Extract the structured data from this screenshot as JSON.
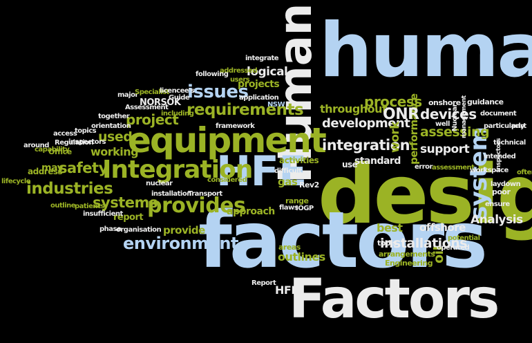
{
  "words": [
    "human",
    "Human",
    "design",
    "factors",
    "Factors",
    "HFE",
    "equipment",
    "Integration",
    "system",
    "provides",
    "environment",
    "requirements",
    "issues",
    "integration",
    "development",
    "systems",
    "industries",
    "safety",
    "project",
    "used",
    "working",
    "logical",
    "projects",
    "addressed",
    "integrate",
    "following",
    "users",
    "performance",
    "process",
    "assessing",
    "support",
    "devices",
    "throughout",
    "ONR",
    "work",
    "Analysis",
    "offshore",
    "installations",
    "oil",
    "best",
    "areas",
    "outlines",
    "approach",
    "report",
    "provide",
    "nuclear",
    "NORSOK",
    "insufficient",
    "patients",
    "outline",
    "phase",
    "organisation",
    "installation",
    "Transport",
    "tools",
    "arrangements",
    "Engineering",
    "operated",
    "potential",
    "Report",
    "HFI",
    "may",
    "address",
    "Office",
    "Regulation",
    "inspectors",
    "access",
    "around",
    "capability",
    "lifecycle",
    "topics",
    "orientation",
    "together",
    "Assessment",
    "major",
    "Specialist",
    "licencee's",
    "Guide",
    "including",
    "application",
    "NSW",
    "framework",
    "standard",
    "activities",
    "use",
    "difficult",
    "gas",
    "Rev2",
    "range",
    "flaws",
    "IOGP",
    "considered",
    "guidance",
    "onshore",
    "document",
    "particularly",
    "intended",
    "technical",
    "part",
    "assessment",
    "error",
    "laydown",
    "workspace",
    "poor",
    "ensure",
    "often",
    "well",
    "Nuclear",
    "management",
    "inspectors"
  ]
}
